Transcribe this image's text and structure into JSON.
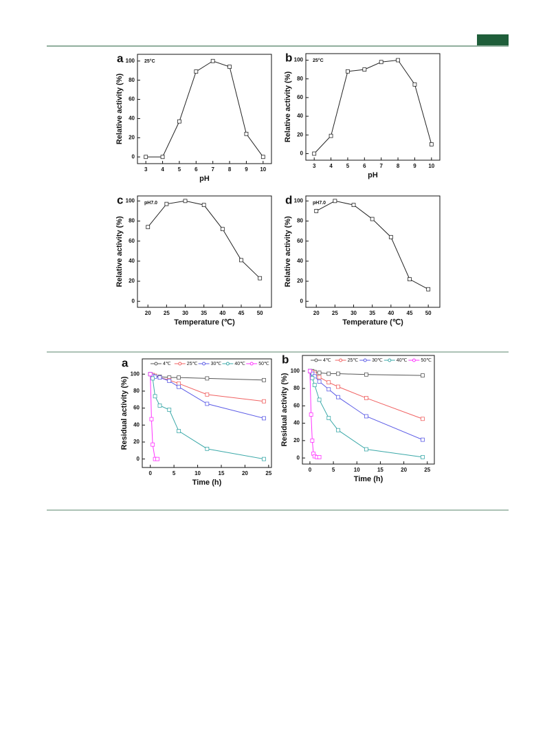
{
  "chart_data": [
    {
      "type": "line",
      "panel": "a",
      "annotation": "25°C",
      "xlabel": "pH",
      "ylabel": "Relative activity (%)",
      "x": [
        3,
        4,
        5,
        6,
        7,
        8,
        9,
        10
      ],
      "series": [
        {
          "color": "#222222",
          "values": [
            0,
            0,
            37,
            89,
            100,
            94,
            24,
            0
          ]
        }
      ],
      "xlim": [
        2.5,
        10.5
      ],
      "xticks": [
        3,
        4,
        5,
        6,
        7,
        8,
        9,
        10
      ],
      "ylim": [
        -7,
        107
      ],
      "yticks": [
        0,
        20,
        40,
        60,
        80,
        100
      ]
    },
    {
      "type": "line",
      "panel": "b",
      "annotation": "25°C",
      "xlabel": "pH",
      "ylabel": "Relative activity (%)",
      "x": [
        3,
        4,
        5,
        6,
        7,
        8,
        9,
        10
      ],
      "series": [
        {
          "color": "#222222",
          "values": [
            0,
            19,
            88,
            90,
            98,
            100,
            74,
            10
          ]
        }
      ],
      "xlim": [
        2.5,
        10.5
      ],
      "xticks": [
        3,
        4,
        5,
        6,
        7,
        8,
        9,
        10
      ],
      "ylim": [
        -7,
        107
      ],
      "yticks": [
        0,
        20,
        40,
        60,
        80,
        100
      ]
    },
    {
      "type": "line",
      "panel": "c",
      "annotation": "pH7.0",
      "xlabel": "Temperature (℃)",
      "ylabel": "Relative activity (%)",
      "x": [
        20,
        25,
        30,
        35,
        40,
        45,
        50
      ],
      "series": [
        {
          "color": "#222222",
          "values": [
            74,
            97,
            100,
            96,
            72,
            41,
            23
          ]
        }
      ],
      "xlim": [
        17.2,
        53.1
      ],
      "xticks": [
        20,
        25,
        30,
        35,
        40,
        45,
        50
      ],
      "ylim": [
        -6,
        105
      ],
      "yticks": [
        0,
        20,
        40,
        60,
        80,
        100
      ]
    },
    {
      "type": "line",
      "panel": "d",
      "annotation": "pH7.0",
      "xlabel": "Temperature (℃)",
      "ylabel": "Relative activity (%)",
      "x": [
        20,
        25,
        30,
        35,
        40,
        45,
        50
      ],
      "series": [
        {
          "color": "#222222",
          "values": [
            90,
            100,
            96,
            82,
            64,
            22,
            12
          ]
        }
      ],
      "xlim": [
        17.2,
        53.1
      ],
      "xticks": [
        20,
        25,
        30,
        35,
        40,
        45,
        50
      ],
      "ylim": [
        -6,
        105
      ],
      "yticks": [
        0,
        20,
        40,
        60,
        80,
        100
      ]
    },
    {
      "type": "line",
      "panel": "a",
      "xlabel": "Time (h)",
      "ylabel": "Residual activity (%)",
      "series": [
        {
          "name": "4℃",
          "color": "#555555",
          "x": [
            0,
            0.5,
            1,
            2,
            4,
            6,
            12,
            24
          ],
          "values": [
            100,
            99,
            98,
            97,
            96,
            96,
            95,
            93
          ]
        },
        {
          "name": "25℃",
          "color": "#f06060",
          "x": [
            0,
            0.5,
            1,
            2,
            4,
            6,
            12,
            24
          ],
          "values": [
            100,
            99,
            98,
            96,
            93,
            89,
            76,
            68
          ]
        },
        {
          "name": "30℃",
          "color": "#5a5ae6",
          "x": [
            0,
            0.5,
            1,
            2,
            4,
            6,
            12,
            24
          ],
          "values": [
            100,
            98,
            97,
            96,
            92,
            85,
            65,
            48
          ]
        },
        {
          "name": "40℃",
          "color": "#3aa8a8",
          "x": [
            0,
            0.5,
            1,
            2,
            4,
            6,
            12,
            24
          ],
          "values": [
            100,
            95,
            74,
            63,
            58,
            33,
            12,
            0
          ]
        },
        {
          "name": "50℃",
          "color": "#ff30ff",
          "x": [
            0,
            0.25,
            0.5,
            1,
            1.5
          ],
          "values": [
            100,
            47,
            17,
            0,
            0
          ]
        }
      ],
      "xlim": [
        -1.7,
        25.6
      ],
      "xticks": [
        0,
        5,
        10,
        15,
        20,
        25
      ],
      "ylim": [
        -10,
        118
      ],
      "yticks": [
        0,
        20,
        40,
        60,
        80,
        100
      ]
    },
    {
      "type": "line",
      "panel": "b",
      "xlabel": "Time (h)",
      "ylabel": "Residual activity (%)",
      "series": [
        {
          "name": "4℃",
          "color": "#555555",
          "x": [
            0,
            0.5,
            1,
            2,
            4,
            6,
            12,
            24
          ],
          "values": [
            100,
            100,
            99,
            98,
            97,
            97,
            96,
            95
          ]
        },
        {
          "name": "25℃",
          "color": "#f06060",
          "x": [
            0,
            0.5,
            1,
            2,
            4,
            6,
            12,
            24
          ],
          "values": [
            100,
            99,
            97,
            93,
            87,
            82,
            69,
            45
          ]
        },
        {
          "name": "30℃",
          "color": "#5a5ae6",
          "x": [
            0,
            0.5,
            1,
            2,
            4,
            6,
            12,
            24
          ],
          "values": [
            100,
            97,
            94,
            88,
            79,
            70,
            48,
            21
          ]
        },
        {
          "name": "40℃",
          "color": "#3aa8a8",
          "x": [
            0,
            0.5,
            1,
            2,
            4,
            6,
            12,
            24
          ],
          "values": [
            100,
            92,
            84,
            67,
            46,
            32,
            10,
            1
          ]
        },
        {
          "name": "50℃",
          "color": "#ff30ff",
          "x": [
            0,
            0.25,
            0.5,
            0.75,
            1,
            1.5,
            2
          ],
          "values": [
            100,
            50,
            20,
            5,
            2,
            1,
            1
          ]
        }
      ],
      "xlim": [
        -1.6,
        26.5
      ],
      "xticks": [
        0,
        5,
        10,
        15,
        20,
        25
      ],
      "ylim": [
        -7,
        118
      ],
      "yticks": [
        0,
        20,
        40,
        60,
        80,
        100
      ]
    }
  ]
}
